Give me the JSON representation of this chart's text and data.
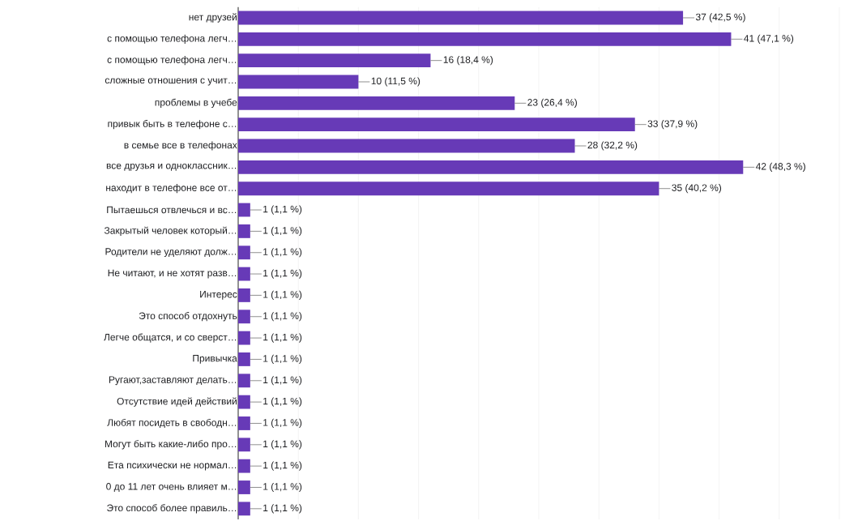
{
  "chart_data": {
    "type": "bar",
    "orientation": "horizontal",
    "color": "#673ab7",
    "grid": "x",
    "tick_labels": "y",
    "xticks": [
      {
        "value": 0,
        "label": null
      },
      {
        "value": 5,
        "label": null
      },
      {
        "value": 10,
        "label": null
      },
      {
        "value": 15,
        "label": null
      },
      {
        "value": 20,
        "label": null
      },
      {
        "value": 25,
        "label": null
      },
      {
        "value": 30,
        "label": null
      },
      {
        "value": 35,
        "label": null
      },
      {
        "value": 40,
        "label": null
      },
      {
        "value": 45,
        "label": null
      },
      {
        "value": 50,
        "label": null
      }
    ],
    "categories": [
      "нет друзей",
      "с помощью телефона легч…",
      "с помощью телефона легч…",
      "сложные отношения с учит…",
      "проблемы в учебе",
      "привык быть в телефоне с…",
      "в семье все в телефонах",
      "все друзья и одноклассник…",
      "находит в телефоне все от…",
      "Пытаешься отвлечься и вс…",
      "Закрытый человек который…",
      "Родители не уделяют долж…",
      "Не читают, и не хотят разв…",
      "Интерес",
      "Это способ отдохнуть",
      "Легче общатся, и со сверст…",
      "Привычка",
      "Ругают,заставляют делать…",
      "Отсутствие идей действий",
      "Любят посидеть в свободн…",
      "Могут быть какие-либо про…",
      "Ета психически не нормал…",
      "0 до 11 лет очень влияет м…",
      "Это способ более правиль…"
    ],
    "values": [
      37,
      41,
      16,
      10,
      23,
      33,
      28,
      42,
      35,
      1,
      1,
      1,
      1,
      1,
      1,
      1,
      1,
      1,
      1,
      1,
      1,
      1,
      1,
      1
    ],
    "value_labels": [
      "37 (42,5 %)",
      "41 (47,1 %)",
      "16 (18,4 %)",
      "10 (11,5 %)",
      "23 (26,4 %)",
      "33 (37,9 %)",
      "28 (32,2 %)",
      "42 (48,3 %)",
      "35 (40,2 %)",
      "1 (1,1 %)",
      "1 (1,1 %)",
      "1 (1,1 %)",
      "1 (1,1 %)",
      "1 (1,1 %)",
      "1 (1,1 %)",
      "1 (1,1 %)",
      "1 (1,1 %)",
      "1 (1,1 %)",
      "1 (1,1 %)",
      "1 (1,1 %)",
      "1 (1,1 %)",
      "1 (1,1 %)",
      "1 (1,1 %)",
      "1 (1,1 %)"
    ]
  }
}
